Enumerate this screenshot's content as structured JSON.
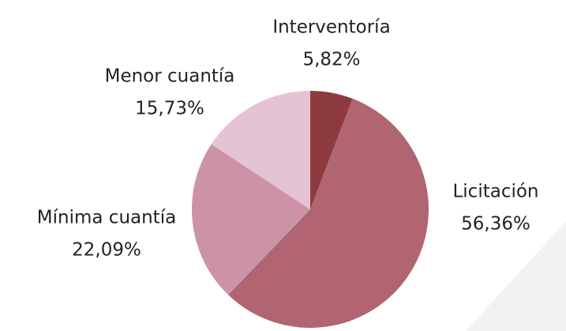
{
  "chart_data": {
    "type": "pie",
    "categories": [
      "Interventoría",
      "Licitación",
      "Mínima cuantía",
      "Menor cuantía"
    ],
    "values": [
      5.82,
      56.36,
      22.09,
      15.73
    ],
    "value_labels": [
      "5,82%",
      "56,36%",
      "22,09%",
      "15,73%"
    ],
    "colors": [
      "#8e3b3f",
      "#b06570",
      "#cc93a6",
      "#e5c3d5"
    ]
  }
}
